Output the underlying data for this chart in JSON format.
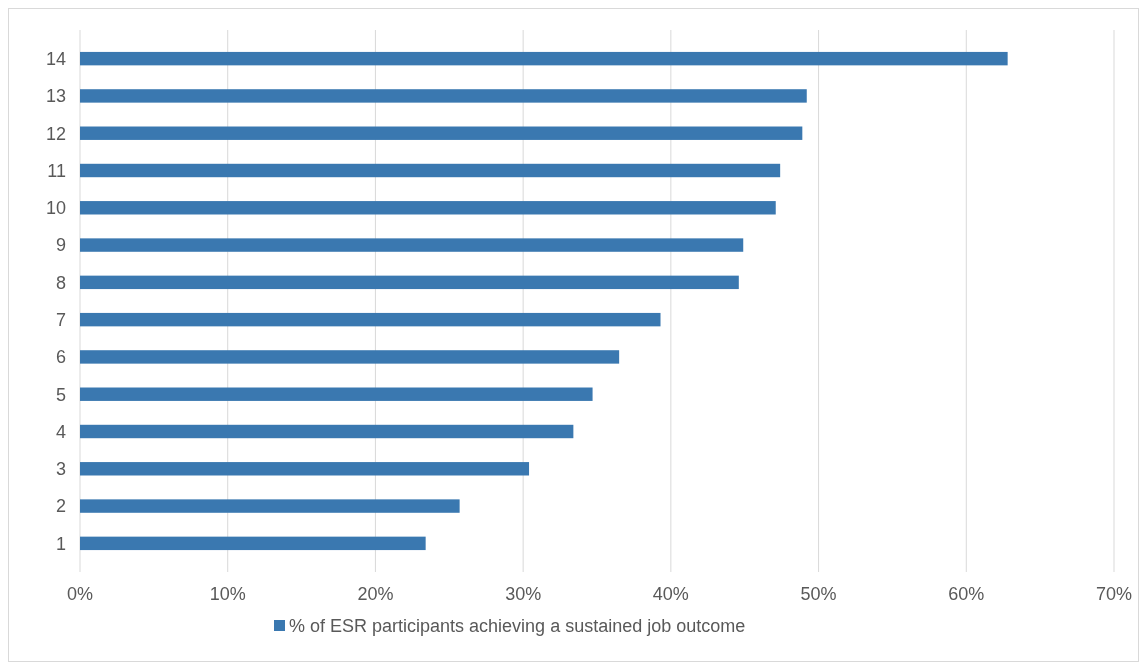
{
  "chart_data": {
    "type": "bar",
    "orientation": "horizontal",
    "categories": [
      "14",
      "13",
      "12",
      "11",
      "10",
      "9",
      "8",
      "7",
      "6",
      "5",
      "4",
      "3",
      "2",
      "1"
    ],
    "series": [
      {
        "name": "% of ESR participants achieving a sustained job outcome",
        "color": "#3a78b0",
        "values": [
          62.8,
          49.2,
          48.9,
          47.4,
          47.1,
          44.9,
          44.6,
          39.3,
          36.5,
          34.7,
          33.4,
          30.4,
          25.7,
          23.4
        ]
      }
    ],
    "xlim": [
      0,
      70
    ],
    "xticks": [
      {
        "value": 0,
        "label": "0%"
      },
      {
        "value": 10,
        "label": "10%"
      },
      {
        "value": 20,
        "label": "20%"
      },
      {
        "value": 30,
        "label": "30%"
      },
      {
        "value": 40,
        "label": "40%"
      },
      {
        "value": 50,
        "label": "50%"
      },
      {
        "value": 60,
        "label": "60%"
      },
      {
        "value": 70,
        "label": "70%"
      }
    ],
    "grid": "x",
    "legend": "bottom"
  }
}
